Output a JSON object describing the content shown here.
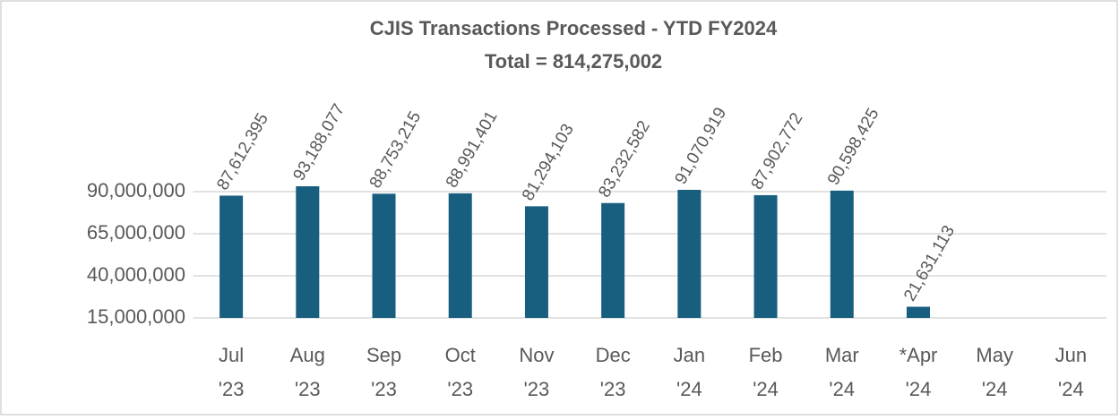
{
  "chart_data": {
    "type": "bar",
    "title": "CJIS Transactions Processed - YTD FY2024",
    "subtitle": "Total = 814,275,002",
    "categories": [
      "Jul\n'23",
      "Aug\n'23",
      "Sep\n'23",
      "Oct\n'23",
      "Nov\n'23",
      "Dec\n'23",
      "Jan\n'24",
      "Feb\n'24",
      "Mar\n'24",
      "*Apr\n'24",
      "May\n'24",
      "Jun\n'24"
    ],
    "values": [
      87612395,
      93188077,
      88753215,
      88991401,
      81294103,
      83232582,
      91070919,
      87902772,
      90598425,
      21631113,
      null,
      null
    ],
    "value_labels": [
      "87,612,395",
      "93,188,077",
      "88,753,215",
      "88,991,401",
      "81,294,103",
      "83,232,582",
      "91,070,919",
      "87,902,772",
      "90,598,425",
      "21,631,113",
      null,
      null
    ],
    "color": "#175e7f",
    "ylim": [
      15000000,
      90000000
    ],
    "yticks": [
      {
        "value": 15000000,
        "label": "15,000,000"
      },
      {
        "value": 40000000,
        "label": "40,000,000"
      },
      {
        "value": 65000000,
        "label": "65,000,000"
      },
      {
        "value": 90000000,
        "label": "90,000,000"
      }
    ],
    "grid": true
  }
}
